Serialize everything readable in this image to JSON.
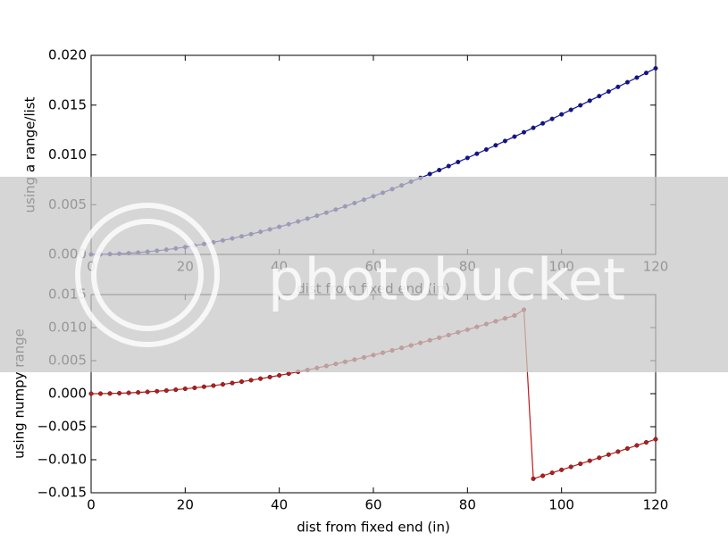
{
  "watermark": "photobucket",
  "chart_data": [
    {
      "type": "line",
      "ylabel": "using a range/list",
      "xlabel": "dist from fixed end (in)",
      "color": "#1010a0",
      "x": [
        0,
        2,
        4,
        6,
        8,
        10,
        12,
        14,
        16,
        18,
        20,
        22,
        24,
        26,
        28,
        30,
        32,
        34,
        36,
        38,
        40,
        42,
        44,
        46,
        48,
        50,
        52,
        54,
        56,
        58,
        60,
        62,
        64,
        66,
        68,
        70,
        72,
        74,
        76,
        78,
        80,
        82,
        84,
        86,
        88,
        90,
        92,
        94,
        96,
        98,
        100,
        102,
        104,
        106,
        108,
        110,
        112,
        114,
        116,
        118,
        120
      ],
      "values": [
        0,
        8e-06,
        3.1e-05,
        6.9e-05,
        0.000122,
        0.000189,
        0.000271,
        0.000367,
        0.000477,
        0.0006,
        0.000736,
        0.000885,
        0.001047,
        0.001222,
        0.001408,
        0.001607,
        0.001817,
        0.002039,
        0.002272,
        0.002516,
        0.00277,
        0.003035,
        0.00331,
        0.003595,
        0.00389,
        0.004194,
        0.004507,
        0.004828,
        0.005159,
        0.005497,
        0.005844,
        0.006198,
        0.00656,
        0.00693,
        0.007306,
        0.007689,
        0.008079,
        0.008474,
        0.008876,
        0.009284,
        0.009697,
        0.010115,
        0.010538,
        0.010965,
        0.011398,
        0.011834,
        0.012274,
        0.012718,
        0.013165,
        0.013615,
        0.014069,
        0.014524,
        0.014983,
        0.015443,
        0.015905,
        0.016368,
        0.016833,
        0.017299,
        0.017766,
        0.018233,
        0.0187
      ],
      "xlim": [
        0,
        120
      ],
      "xticks": [
        0,
        20,
        40,
        60,
        80,
        100,
        120
      ],
      "ylim": [
        0,
        0.02
      ],
      "yticks": [
        {
          "value": 0,
          "label": "0.000"
        },
        {
          "value": 0.005,
          "label": "0.005"
        },
        {
          "value": 0.01,
          "label": "0.010"
        },
        {
          "value": 0.015,
          "label": "0.015"
        },
        {
          "value": 0.02,
          "label": "0.020"
        }
      ]
    },
    {
      "type": "line",
      "ylabel": "using numpy range",
      "xlabel": "dist from fixed end (in)",
      "color": "#c01818",
      "x": [
        0,
        2,
        4,
        6,
        8,
        10,
        12,
        14,
        16,
        18,
        20,
        22,
        24,
        26,
        28,
        30,
        32,
        34,
        36,
        38,
        40,
        42,
        44,
        46,
        48,
        50,
        52,
        54,
        56,
        58,
        60,
        62,
        64,
        66,
        68,
        70,
        72,
        74,
        76,
        78,
        80,
        82,
        84,
        86,
        88,
        90,
        92,
        94,
        96,
        98,
        100,
        102,
        104,
        106,
        108,
        110,
        112,
        114,
        116,
        118,
        120
      ],
      "values": [
        0,
        8e-06,
        3.1e-05,
        6.9e-05,
        0.000122,
        0.000189,
        0.000271,
        0.000367,
        0.000477,
        0.0006,
        0.000736,
        0.000885,
        0.001047,
        0.001222,
        0.001408,
        0.001607,
        0.001817,
        0.002039,
        0.002272,
        0.002516,
        0.00277,
        0.003035,
        0.00331,
        0.003595,
        0.00389,
        0.004194,
        0.004507,
        0.004828,
        0.005159,
        0.005497,
        0.005844,
        0.006198,
        0.00656,
        0.00693,
        0.007306,
        0.007689,
        0.008079,
        0.008474,
        0.008876,
        0.009284,
        0.009697,
        0.010115,
        0.010538,
        0.010965,
        0.011398,
        0.011834,
        0.0127,
        -0.01288,
        -0.01243,
        -0.01198,
        -0.01153,
        -0.01108,
        -0.01062,
        -0.01016,
        -0.0097,
        -0.00923,
        -0.00877,
        -0.0083,
        -0.00783,
        -0.00737,
        -0.0069
      ],
      "xlim": [
        0,
        120
      ],
      "xticks": [
        0,
        20,
        40,
        60,
        80,
        100,
        120
      ],
      "ylim": [
        -0.015,
        0.015
      ],
      "yticks": [
        {
          "value": -0.015,
          "label": "−0.015"
        },
        {
          "value": -0.01,
          "label": "−0.010"
        },
        {
          "value": -0.005,
          "label": "−0.005"
        },
        {
          "value": 0,
          "label": "0.000"
        },
        {
          "value": 0.005,
          "label": "0.005"
        },
        {
          "value": 0.01,
          "label": "0.010"
        },
        {
          "value": 0.015,
          "label": "0.015"
        }
      ]
    }
  ]
}
